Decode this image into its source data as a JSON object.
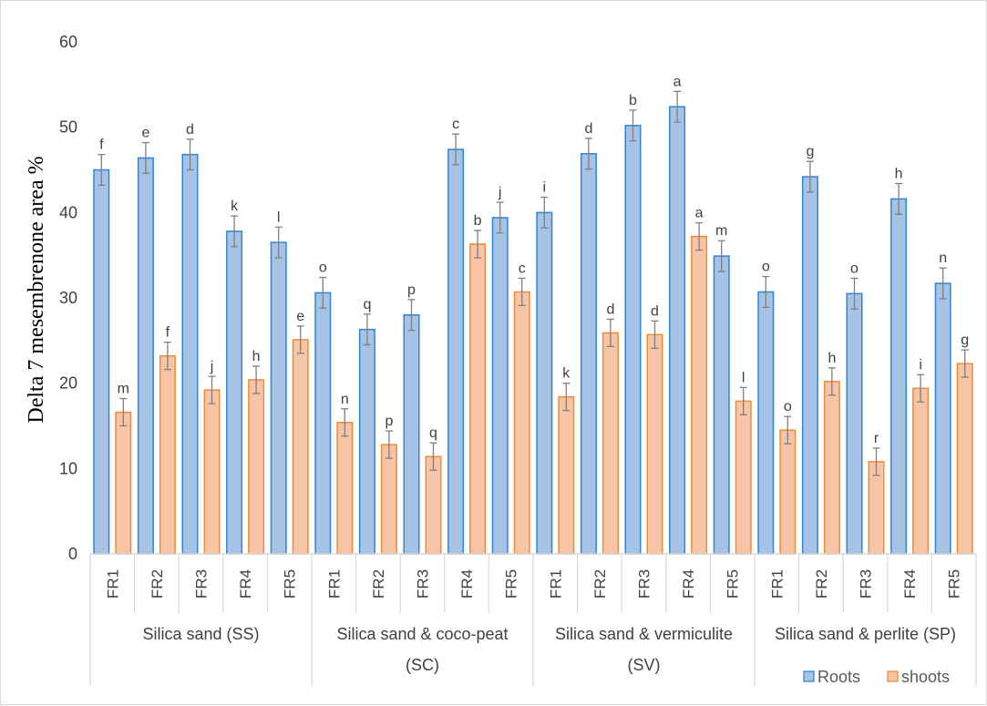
{
  "chart_data": {
    "type": "bar",
    "ylabel": "Delta 7 mesembrenone area %",
    "ylim": [
      0,
      60
    ],
    "yticks": [
      0,
      10,
      20,
      30,
      40,
      50,
      60
    ],
    "grid": false,
    "legend_position": "bottom-right",
    "groups": [
      {
        "name": "Silica sand (SS)",
        "name_lines": [
          "Silica sand (SS)"
        ],
        "categories": [
          "FR1",
          "FR2",
          "FR3",
          "FR4",
          "FR5"
        ]
      },
      {
        "name": "Silica sand & coco-peat (SC)",
        "name_lines": [
          "Silica sand & coco-peat",
          "(SC)"
        ],
        "categories": [
          "FR1",
          "FR2",
          "FR3",
          "FR4",
          "FR5"
        ]
      },
      {
        "name": "Silica sand & vermiculite (SV)",
        "name_lines": [
          "Silica sand & vermiculite",
          "(SV)"
        ],
        "categories": [
          "FR1",
          "FR2",
          "FR3",
          "FR4",
          "FR5"
        ]
      },
      {
        "name": "Silica sand & perlite (SP)",
        "name_lines": [
          "Silica sand & perlite (SP)"
        ],
        "categories": [
          "FR1",
          "FR2",
          "FR3",
          "FR4",
          "FR5"
        ]
      }
    ],
    "series": [
      {
        "name": "Roots",
        "color": "#a6c3e6",
        "edge_color": "#2e86d6",
        "values": [
          45.0,
          46.4,
          46.8,
          37.8,
          36.5,
          30.6,
          26.3,
          28.0,
          47.4,
          39.4,
          40.0,
          46.9,
          50.2,
          52.4,
          34.9,
          30.7,
          44.2,
          30.5,
          41.6,
          31.7
        ],
        "errors": [
          1.8,
          1.8,
          1.8,
          1.8,
          1.8,
          1.8,
          1.8,
          1.8,
          1.8,
          1.8,
          1.8,
          1.8,
          1.8,
          1.8,
          1.8,
          1.8,
          1.8,
          1.8,
          1.8,
          1.8
        ],
        "letters": [
          "f",
          "e",
          "d",
          "k",
          "l",
          "o",
          "q",
          "p",
          "c",
          "j",
          "i",
          "d",
          "b",
          "a",
          "m",
          "o",
          "g",
          "o",
          "h",
          "n"
        ]
      },
      {
        "name": "shoots",
        "color": "#f8c4a6",
        "edge_color": "#ed8c3b",
        "values": [
          16.6,
          23.2,
          19.2,
          20.4,
          25.1,
          15.4,
          12.8,
          11.4,
          36.3,
          30.7,
          18.4,
          25.9,
          25.7,
          37.2,
          17.9,
          14.5,
          20.2,
          10.8,
          19.4,
          22.3
        ],
        "errors": [
          1.6,
          1.6,
          1.6,
          1.6,
          1.6,
          1.6,
          1.6,
          1.6,
          1.6,
          1.6,
          1.6,
          1.6,
          1.6,
          1.6,
          1.6,
          1.6,
          1.6,
          1.6,
          1.6,
          1.6
        ],
        "letters": [
          "m",
          "f",
          "j",
          "h",
          "e",
          "n",
          "p",
          "q",
          "b",
          "c",
          "k",
          "d",
          "d",
          "a",
          "l",
          "o",
          "h",
          "r",
          "i",
          "g"
        ]
      }
    ]
  }
}
